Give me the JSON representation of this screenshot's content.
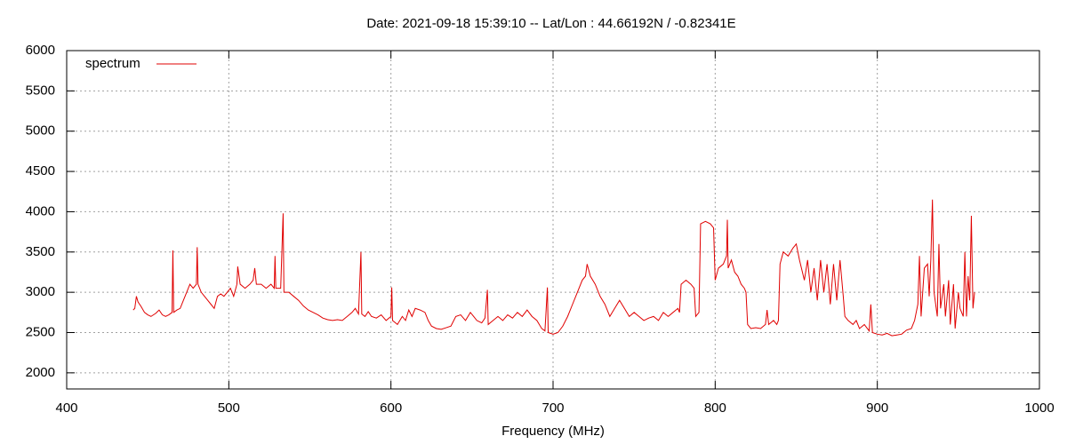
{
  "chart_data": {
    "type": "line",
    "title": "Date: 2021-09-18 15:39:10  --  Lat/Lon : 44.66192N / -0.82341E",
    "x_label": "Frequency (MHz)",
    "x": [
      441,
      442,
      443,
      444,
      446,
      448,
      450,
      452,
      455,
      457,
      459,
      461,
      463,
      465,
      465.5,
      466,
      468,
      470,
      472,
      474,
      476,
      478,
      480,
      480.5,
      481,
      483,
      485,
      487,
      489,
      491,
      493,
      495,
      497,
      499,
      501,
      503,
      505,
      505.5,
      507,
      510,
      513,
      515,
      516,
      517,
      520,
      523,
      526,
      528,
      528.5,
      529,
      532,
      533.5,
      534,
      537,
      540,
      543,
      546,
      549,
      552,
      555,
      558,
      561,
      564,
      567,
      570,
      573,
      576,
      578,
      580,
      581.5,
      582,
      584,
      586,
      588,
      591,
      594,
      597,
      600,
      600.5,
      601,
      604,
      607,
      609,
      611,
      613,
      615,
      618,
      621,
      623,
      625,
      628,
      631,
      634,
      637,
      640,
      643,
      646,
      649,
      651,
      653,
      656,
      658,
      659.5,
      660,
      663,
      666,
      669,
      672,
      675,
      678,
      681,
      684,
      687,
      690,
      693,
      695,
      696.5,
      697,
      700,
      703,
      706,
      709,
      712,
      715,
      718,
      720,
      721,
      723,
      726,
      729,
      732,
      735,
      738,
      741,
      744,
      747,
      750,
      753,
      756,
      759,
      762,
      765,
      768,
      771,
      774,
      777,
      778,
      779,
      782,
      785,
      787,
      788,
      790,
      791,
      794,
      797,
      799,
      800,
      802,
      805,
      807,
      807.5,
      808,
      810,
      812,
      814,
      816,
      818,
      819,
      820,
      822,
      825,
      828,
      831,
      832,
      833,
      836,
      838,
      839,
      840,
      842,
      845,
      848,
      850,
      852,
      855,
      857,
      859,
      861,
      863,
      865,
      867,
      869,
      871,
      873,
      875,
      877,
      879,
      880,
      882,
      885,
      887,
      889,
      892,
      895,
      896,
      897,
      900,
      903,
      906,
      909,
      912,
      915,
      918,
      921,
      923,
      925,
      926,
      927,
      929,
      931,
      932,
      933,
      934,
      935,
      937,
      938,
      939,
      941,
      942,
      944,
      945,
      947,
      948,
      950,
      951,
      953,
      954,
      955,
      956,
      957,
      958,
      959,
      960
    ],
    "series": [
      {
        "name": "spectrum",
        "color": "#e00000",
        "values": [
          2780,
          2800,
          2950,
          2880,
          2820,
          2750,
          2720,
          2700,
          2740,
          2780,
          2720,
          2700,
          2720,
          2750,
          3520,
          2750,
          2780,
          2800,
          2900,
          3000,
          3100,
          3050,
          3100,
          3560,
          3100,
          3000,
          2950,
          2900,
          2850,
          2800,
          2950,
          2980,
          2950,
          3000,
          3050,
          2950,
          3100,
          3320,
          3100,
          3050,
          3100,
          3150,
          3300,
          3100,
          3100,
          3050,
          3100,
          3050,
          3450,
          3050,
          3050,
          3980,
          3000,
          3000,
          2950,
          2900,
          2830,
          2780,
          2750,
          2720,
          2680,
          2660,
          2650,
          2660,
          2650,
          2700,
          2750,
          2800,
          2730,
          3500,
          2730,
          2700,
          2760,
          2700,
          2680,
          2720,
          2650,
          2700,
          3060,
          2650,
          2600,
          2700,
          2650,
          2780,
          2700,
          2800,
          2780,
          2750,
          2650,
          2580,
          2550,
          2540,
          2560,
          2580,
          2700,
          2720,
          2650,
          2750,
          2700,
          2650,
          2620,
          2680,
          3030,
          2600,
          2650,
          2700,
          2650,
          2720,
          2680,
          2750,
          2700,
          2780,
          2700,
          2650,
          2550,
          2520,
          3060,
          2500,
          2480,
          2500,
          2580,
          2700,
          2850,
          3000,
          3150,
          3200,
          3350,
          3200,
          3100,
          2950,
          2850,
          2700,
          2800,
          2900,
          2800,
          2700,
          2750,
          2700,
          2650,
          2680,
          2700,
          2650,
          2750,
          2700,
          2750,
          2800,
          2750,
          3100,
          3150,
          3100,
          3050,
          2700,
          2750,
          3850,
          3880,
          3850,
          3800,
          3150,
          3300,
          3350,
          3450,
          3900,
          3300,
          3400,
          3250,
          3200,
          3100,
          3050,
          3000,
          2600,
          2550,
          2560,
          2550,
          2600,
          2780,
          2600,
          2650,
          2600,
          2650,
          3350,
          3500,
          3450,
          3550,
          3600,
          3400,
          3150,
          3400,
          3000,
          3300,
          2900,
          3400,
          3000,
          3350,
          2850,
          3350,
          2900,
          3400,
          2950,
          2700,
          2650,
          2600,
          2650,
          2550,
          2600,
          2520,
          2850,
          2500,
          2480,
          2470,
          2490,
          2460,
          2470,
          2480,
          2530,
          2550,
          2650,
          2850,
          3450,
          2700,
          3300,
          3350,
          2950,
          3400,
          4150,
          3000,
          2700,
          3600,
          2800,
          3100,
          2700,
          3150,
          2600,
          3100,
          2550,
          3000,
          2800,
          2700,
          3500,
          2700,
          3200,
          2900,
          3950,
          2800,
          3000
        ]
      }
    ],
    "xlim": [
      400,
      1000
    ],
    "ylim": [
      1800,
      6000
    ],
    "xticks": [
      400,
      500,
      600,
      700,
      800,
      900,
      1000
    ],
    "yticks": [
      2000,
      2500,
      3000,
      3500,
      4000,
      4500,
      5000,
      5500,
      6000
    ],
    "grid": true,
    "legend": "top-left"
  }
}
